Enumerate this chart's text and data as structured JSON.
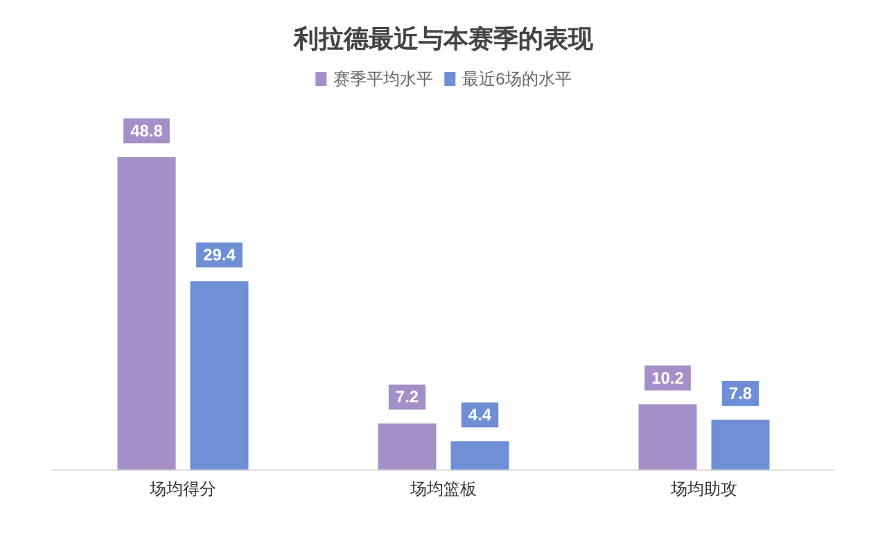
{
  "chart_data": {
    "type": "bar",
    "title": "利拉德最近与本赛季的表现",
    "categories": [
      "场均得分",
      "场均篮板",
      "场均助攻"
    ],
    "series": [
      {
        "name": "赛季平均水平",
        "color": "#a58fc8",
        "values": [
          48.8,
          7.2,
          10.2
        ]
      },
      {
        "name": "最近6场的水平",
        "color": "#6e8fd6",
        "values": [
          29.4,
          4.4,
          7.8
        ]
      }
    ],
    "data_labels": true,
    "legend": "top",
    "tick_labels": "x"
  }
}
